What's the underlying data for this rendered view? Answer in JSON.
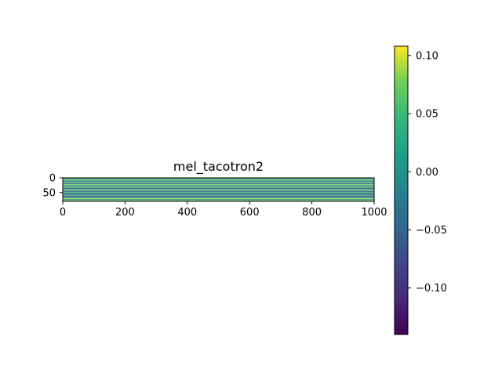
{
  "chart_data": {
    "type": "heatmap",
    "title": "mel_tacotron2",
    "xlabel": "",
    "ylabel": "",
    "xlim": [
      0,
      1000
    ],
    "ylim": [
      80,
      0
    ],
    "x_ticks": [
      "0",
      "200",
      "400",
      "600",
      "800",
      "1000"
    ],
    "y_ticks": [
      "0",
      "50"
    ],
    "colormap": "viridis",
    "colorbar": {
      "vmin": -0.14,
      "vmax": 0.108,
      "ticks": [
        {
          "value": 0.1,
          "label": "0.10"
        },
        {
          "value": 0.05,
          "label": "0.05"
        },
        {
          "value": 0.0,
          "label": "0.00"
        },
        {
          "value": -0.05,
          "label": "−0.05"
        },
        {
          "value": -0.1,
          "label": "−0.10"
        }
      ]
    },
    "rows": 80,
    "row_values": [
      0.06,
      0.04,
      0.01,
      -0.02,
      -0.01,
      0.03,
      0.07,
      0.09,
      0.07,
      0.02,
      -0.04,
      -0.07,
      -0.05,
      0.0,
      0.05,
      0.08,
      0.06,
      0.02,
      -0.03,
      -0.06,
      -0.04,
      0.01,
      0.06,
      0.09,
      0.07,
      0.03,
      -0.02,
      -0.05,
      -0.03,
      0.02,
      0.05,
      0.08,
      0.06,
      0.02,
      -0.03,
      -0.07,
      -0.09,
      -0.06,
      -0.02,
      0.03,
      0.07,
      0.1,
      0.07,
      0.03,
      -0.02,
      -0.06,
      -0.08,
      -0.05,
      0.0,
      0.04,
      0.07,
      0.05,
      0.01,
      -0.04,
      -0.08,
      -0.1,
      -0.07,
      -0.03,
      0.02,
      0.06,
      0.03,
      -0.02,
      -0.06,
      -0.09,
      -0.11,
      -0.08,
      -0.04,
      0.01,
      0.05,
      0.08,
      0.1,
      0.07,
      0.04,
      0.0,
      -0.03,
      0.01,
      0.05,
      0.08,
      0.1,
      0.09
    ]
  }
}
